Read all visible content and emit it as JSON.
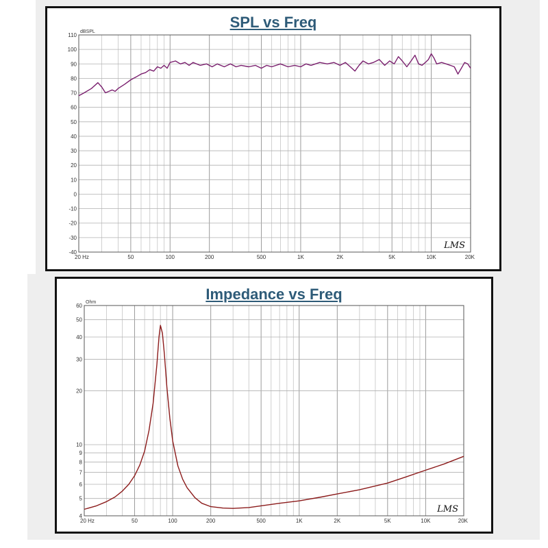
{
  "chart_data": [
    {
      "type": "line",
      "title": "SPL vs Freq",
      "unit_label": "dBSPL",
      "watermark": "LMS",
      "x_scale": "log",
      "xlim": [
        20,
        20000
      ],
      "ylim": [
        -40,
        110
      ],
      "y_ticks": [
        110,
        100,
        90,
        80,
        70,
        60,
        50,
        40,
        30,
        20,
        10,
        0,
        -10,
        -20,
        -30,
        -40
      ],
      "x_tick_labels": [
        {
          "value": 20,
          "label": "20 Hz"
        },
        {
          "value": 50,
          "label": "50"
        },
        {
          "value": 100,
          "label": "100"
        },
        {
          "value": 200,
          "label": "200"
        },
        {
          "value": 500,
          "label": "500"
        },
        {
          "value": 1000,
          "label": "1K"
        },
        {
          "value": 2000,
          "label": "2K"
        },
        {
          "value": 5000,
          "label": "5K"
        },
        {
          "value": 10000,
          "label": "10K"
        },
        {
          "value": 20000,
          "label": "20K"
        }
      ],
      "grid": true,
      "series": [
        {
          "color": "#7a1f6e",
          "x": [
            20,
            22,
            25,
            28,
            30,
            32,
            34,
            36,
            38,
            40,
            45,
            50,
            55,
            60,
            65,
            70,
            75,
            80,
            85,
            90,
            95,
            100,
            110,
            120,
            130,
            140,
            150,
            170,
            190,
            210,
            230,
            260,
            290,
            320,
            350,
            400,
            450,
            500,
            550,
            600,
            700,
            800,
            900,
            1000,
            1100,
            1200,
            1400,
            1600,
            1800,
            2000,
            2200,
            2400,
            2600,
            2800,
            3000,
            3300,
            3600,
            4000,
            4400,
            4800,
            5200,
            5600,
            6000,
            6500,
            7000,
            7500,
            8000,
            8500,
            9000,
            9500,
            10000,
            10500,
            11000,
            12000,
            13000,
            14000,
            15000,
            16000,
            17000,
            18000,
            19000,
            20000
          ],
          "y": [
            68,
            70,
            73,
            77,
            74,
            70,
            71,
            72,
            71,
            73,
            76,
            79,
            81,
            83,
            84,
            86,
            85,
            88,
            87,
            89,
            87,
            91,
            92,
            90,
            91,
            89,
            91,
            89,
            90,
            88,
            90,
            88,
            90,
            88,
            89,
            88,
            89,
            87,
            89,
            88,
            90,
            88,
            89,
            88,
            90,
            89,
            91,
            90,
            91,
            89,
            91,
            88,
            85,
            89,
            92,
            90,
            91,
            93,
            89,
            92,
            90,
            95,
            92,
            88,
            92,
            96,
            90,
            89,
            91,
            93,
            97,
            94,
            90,
            91,
            90,
            89,
            88,
            83,
            87,
            91,
            90,
            87
          ]
        }
      ]
    },
    {
      "type": "line",
      "title": "Impedance vs Freq",
      "unit_label": "Ohm",
      "watermark": "LMS",
      "x_scale": "log",
      "y_scale": "log",
      "xlim": [
        20,
        20000
      ],
      "ylim": [
        4,
        60
      ],
      "y_ticks": [
        60,
        50,
        40,
        30,
        20,
        10,
        9,
        8,
        7,
        6,
        5,
        4
      ],
      "x_tick_labels": [
        {
          "value": 20,
          "label": "20 Hz"
        },
        {
          "value": 50,
          "label": "50"
        },
        {
          "value": 100,
          "label": "100"
        },
        {
          "value": 200,
          "label": "200"
        },
        {
          "value": 500,
          "label": "500"
        },
        {
          "value": 1000,
          "label": "1K"
        },
        {
          "value": 2000,
          "label": "2K"
        },
        {
          "value": 5000,
          "label": "5K"
        },
        {
          "value": 10000,
          "label": "10K"
        },
        {
          "value": 20000,
          "label": "20K"
        }
      ],
      "grid": true,
      "series": [
        {
          "color": "#8b1a1a",
          "x": [
            20,
            25,
            30,
            35,
            40,
            45,
            50,
            55,
            60,
            65,
            70,
            75,
            78,
            80,
            83,
            86,
            90,
            95,
            100,
            110,
            120,
            130,
            150,
            170,
            200,
            250,
            300,
            400,
            500,
            700,
            1000,
            1500,
            2000,
            3000,
            5000,
            7000,
            10000,
            14000,
            20000
          ],
          "y": [
            4.35,
            4.55,
            4.8,
            5.1,
            5.5,
            6.0,
            6.7,
            7.7,
            9.2,
            12.0,
            17.0,
            28.0,
            40.0,
            46.5,
            42.0,
            32.0,
            21.0,
            14.0,
            10.5,
            7.6,
            6.4,
            5.75,
            5.05,
            4.7,
            4.5,
            4.42,
            4.4,
            4.45,
            4.55,
            4.7,
            4.85,
            5.1,
            5.3,
            5.6,
            6.1,
            6.6,
            7.2,
            7.8,
            8.6
          ]
        }
      ]
    }
  ]
}
